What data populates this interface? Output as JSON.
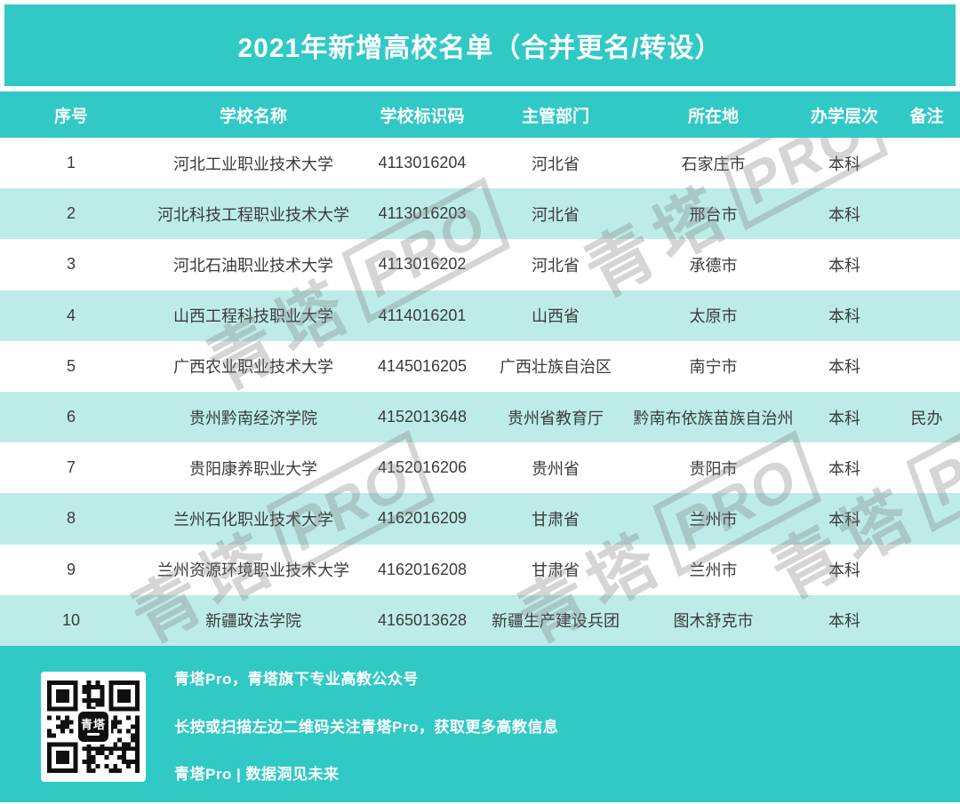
{
  "title": "2021年新增高校名单（合并更名/转设）",
  "table": {
    "columns": [
      "序号",
      "学校名称",
      "学校标识码",
      "主管部门",
      "所在地",
      "办学层次",
      "备注"
    ],
    "rows": [
      [
        "1",
        "河北工业职业技术大学",
        "4113016204",
        "河北省",
        "石家庄市",
        "本科",
        ""
      ],
      [
        "2",
        "河北科技工程职业技术大学",
        "4113016203",
        "河北省",
        "邢台市",
        "本科",
        ""
      ],
      [
        "3",
        "河北石油职业技术大学",
        "4113016202",
        "河北省",
        "承德市",
        "本科",
        ""
      ],
      [
        "4",
        "山西工程科技职业大学",
        "4114016201",
        "山西省",
        "太原市",
        "本科",
        ""
      ],
      [
        "5",
        "广西农业职业技术大学",
        "4145016205",
        "广西壮族自治区",
        "南宁市",
        "本科",
        ""
      ],
      [
        "6",
        "贵州黔南经济学院",
        "4152013648",
        "贵州省教育厅",
        "黔南布依族苗族自治州",
        "本科",
        "民办"
      ],
      [
        "7",
        "贵阳康养职业大学",
        "4152016206",
        "贵州省",
        "贵阳市",
        "本科",
        ""
      ],
      [
        "8",
        "兰州石化职业技术大学",
        "4162016209",
        "甘肃省",
        "兰州市",
        "本科",
        ""
      ],
      [
        "9",
        "兰州资源环境职业技术大学",
        "4162016208",
        "甘肃省",
        "兰州市",
        "本科",
        ""
      ],
      [
        "10",
        "新疆政法学院",
        "4165013628",
        "新疆生产建设兵团",
        "图木舒克市",
        "本科",
        ""
      ]
    ]
  },
  "watermark": {
    "text": "青塔",
    "badge": "PRO"
  },
  "footer": {
    "line1": "青塔Pro，青塔旗下专业高教公众号",
    "line2": "长按或扫描左边二维码关注青塔Pro，获取更多高教信息",
    "line3": "青塔Pro | 数据洞见未来",
    "qr_label": "青塔"
  },
  "colors": {
    "teal": "#31c9c5",
    "light_row": "#bdece8",
    "text": "#3b3b3b"
  }
}
